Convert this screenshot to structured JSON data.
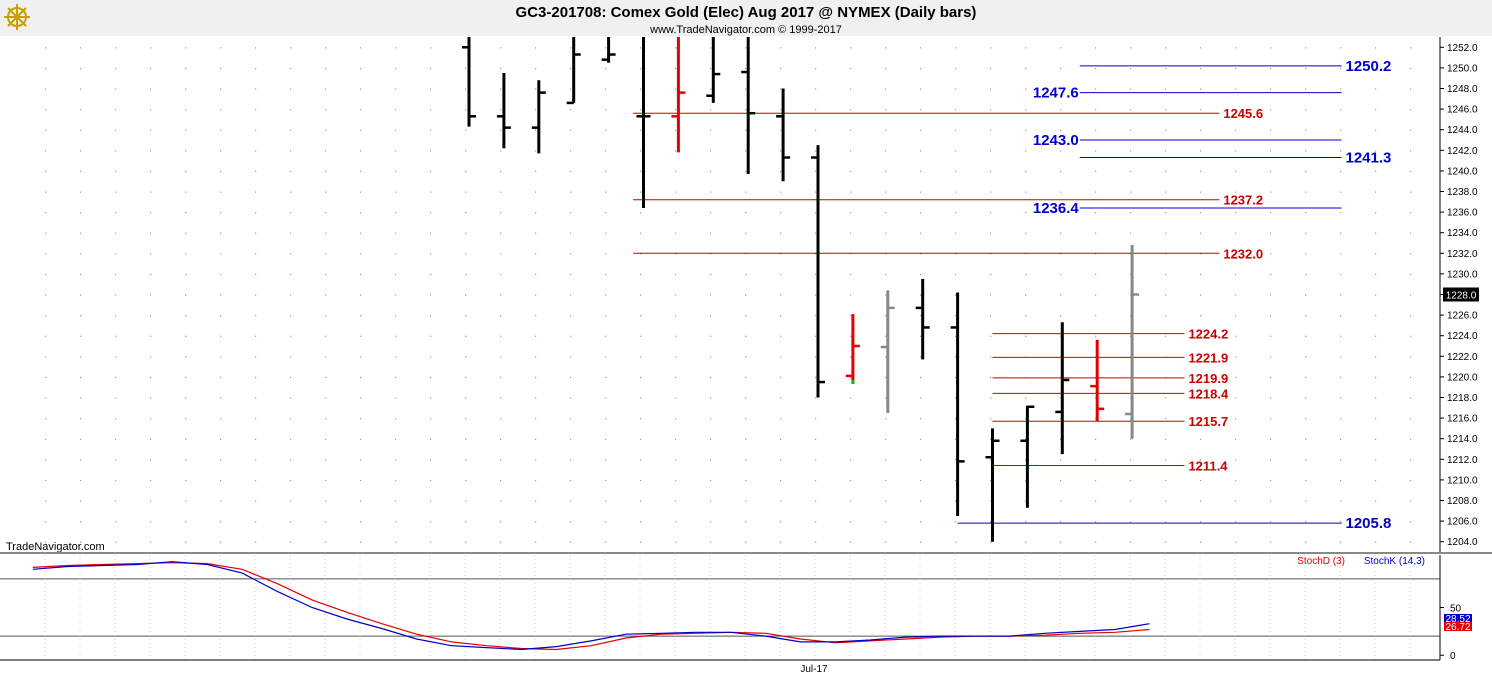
{
  "title": "GC3-201708:  Comex Gold (Elec) Aug 2017 @ NYMEX  (Daily bars)",
  "subtitle": "www.TradeNavigator.com © 1999-2017",
  "watermark": "TradeNavigator.com",
  "logo_icon": "trading-ship-wheel-icon",
  "chart_data": [
    {
      "type": "ohlc",
      "price_axis": {
        "ylim": [
          1203,
          1253
        ],
        "ticks": [
          1204,
          1206,
          1208,
          1210,
          1212,
          1214,
          1216,
          1218,
          1220,
          1222,
          1224,
          1226,
          1228,
          1230,
          1232,
          1234,
          1236,
          1238,
          1240,
          1242,
          1244,
          1246,
          1248,
          1250,
          1252
        ],
        "tick_labels": [
          "1204.0",
          "1206.0",
          "1208.0",
          "1210.0",
          "1212.0",
          "1214.0",
          "1216.0",
          "1218.0",
          "1220.0",
          "1222.0",
          "1224.0",
          "1226.0",
          "1228.0",
          "1230.0",
          "1232.0",
          "1234.0",
          "1236.0",
          "1238.0",
          "1240.0",
          "1242.0",
          "1244.0",
          "1246.0",
          "1248.0",
          "1250.0",
          "1252.0"
        ],
        "position": "right"
      },
      "last_price": {
        "value": 1228.0,
        "label": "1228.0"
      },
      "colors": {
        "up_black": "#000000",
        "red": "#e60000",
        "gray": "#888888",
        "green": "#00c000",
        "support_red": "#cc0000",
        "support_blue": "#0000cc"
      },
      "bars": [
        {
          "o": 1252,
          "h": 1253,
          "l": 1244.3,
          "c": 1245.3,
          "color": "#000000"
        },
        {
          "o": 1245.3,
          "h": 1249.5,
          "l": 1242.2,
          "c": 1244.2,
          "color": "#000000"
        },
        {
          "o": 1244.2,
          "h": 1248.8,
          "l": 1241.7,
          "c": 1247.6,
          "color": "#000000"
        },
        {
          "o": 1246.6,
          "h": 1253,
          "l": 1246.6,
          "c": 1251.3,
          "color": "#000000"
        },
        {
          "o": 1250.8,
          "h": 1253,
          "l": 1250.5,
          "c": 1251.3,
          "color": "#000000"
        },
        {
          "o": 1245.3,
          "h": 1253,
          "l": 1236.4,
          "c": 1245.3,
          "color": "#000000"
        },
        {
          "o": 1245.3,
          "h": 1253,
          "l": 1241.8,
          "c": 1247.6,
          "color": "#e60000"
        },
        {
          "o": 1247.3,
          "h": 1253,
          "l": 1246.6,
          "c": 1249.4,
          "color": "#000000"
        },
        {
          "o": 1249.6,
          "h": 1253,
          "l": 1239.7,
          "c": 1245.6,
          "color": "#000000"
        },
        {
          "o": 1245.3,
          "h": 1248.0,
          "l": 1239.0,
          "c": 1241.3,
          "color": "#000000"
        },
        {
          "o": 1241.3,
          "h": 1242.5,
          "l": 1218.0,
          "c": 1219.5,
          "color": "#000000"
        },
        {
          "o": 1220.1,
          "h": 1226.1,
          "l": 1219.6,
          "c": 1223.0,
          "color": "#e60000",
          "low_marker": "#00c000"
        },
        {
          "o": 1222.9,
          "h": 1228.4,
          "l": 1216.5,
          "c": 1226.7,
          "color": "#888888"
        },
        {
          "o": 1226.7,
          "h": 1229.5,
          "l": 1221.7,
          "c": 1224.8,
          "color": "#000000"
        },
        {
          "o": 1224.8,
          "h": 1228.2,
          "l": 1206.5,
          "c": 1211.8,
          "color": "#000000"
        },
        {
          "o": 1212.2,
          "h": 1215.0,
          "l": 1204.0,
          "c": 1213.8,
          "color": "#000000"
        },
        {
          "o": 1213.8,
          "h": 1217.2,
          "l": 1207.3,
          "c": 1217.1,
          "color": "#000000"
        },
        {
          "o": 1216.6,
          "h": 1225.3,
          "l": 1212.5,
          "c": 1219.7,
          "color": "#000000"
        },
        {
          "o": 1219.1,
          "h": 1223.6,
          "l": 1215.7,
          "c": 1216.9,
          "color": "#e60000"
        },
        {
          "o": 1216.4,
          "h": 1232.8,
          "l": 1214.0,
          "c": 1228.0,
          "color": "#888888"
        }
      ],
      "levels": [
        {
          "value": 1250.2,
          "label": "1250.2",
          "color": "#0000cc",
          "from_bar": 17.5,
          "to_bar": 25.0,
          "label_side": "right"
        },
        {
          "value": 1247.6,
          "label": "1247.6",
          "color": "#0000cc",
          "from_bar": 17.5,
          "to_bar": 25.0,
          "label_side": "left"
        },
        {
          "value": 1245.6,
          "label": "1245.6",
          "color": "#cc0000",
          "from_bar": 4.7,
          "to_bar": 21.5,
          "label_side": "right"
        },
        {
          "value": 1243.0,
          "label": "1243.0",
          "color": "#0000cc",
          "from_bar": 17.5,
          "to_bar": 25.0,
          "label_side": "left"
        },
        {
          "value": 1241.3,
          "label": "1241.3",
          "color": "#0000cc",
          "from_bar": 17.5,
          "to_bar": 25.0,
          "label_side": "right"
        },
        {
          "value": 1237.2,
          "label": "1237.2",
          "color": "#cc0000",
          "from_bar": 4.7,
          "to_bar": 21.5,
          "label_side": "right"
        },
        {
          "value": 1236.4,
          "label": "1236.4",
          "color": "#0000cc",
          "from_bar": 17.5,
          "to_bar": 25.0,
          "label_side": "left"
        },
        {
          "value": 1232.0,
          "label": "1232.0",
          "color": "#cc0000",
          "from_bar": 4.7,
          "to_bar": 21.5,
          "label_side": "right"
        },
        {
          "value": 1224.2,
          "label": "1224.2",
          "color": "#cc0000",
          "from_bar": 15.0,
          "to_bar": 20.5,
          "label_side": "right"
        },
        {
          "value": 1221.9,
          "label": "1221.9",
          "color": "#cc0000",
          "from_bar": 15.0,
          "to_bar": 20.5,
          "label_side": "right"
        },
        {
          "value": 1219.9,
          "label": "1219.9",
          "color": "#cc0000",
          "from_bar": 15.0,
          "to_bar": 20.5,
          "label_side": "right"
        },
        {
          "value": 1218.4,
          "label": "1218.4",
          "color": "#cc0000",
          "from_bar": 15.0,
          "to_bar": 20.5,
          "label_side": "right"
        },
        {
          "value": 1215.7,
          "label": "1215.7",
          "color": "#cc0000",
          "from_bar": 15.0,
          "to_bar": 20.5,
          "label_side": "right"
        },
        {
          "value": 1211.4,
          "label": "1211.4",
          "color": "#cc0000",
          "from_bar": 15.0,
          "to_bar": 20.5,
          "label_side": "right"
        },
        {
          "value": 1205.8,
          "label": "1205.8",
          "color": "#0000cc",
          "from_bar": 14.0,
          "to_bar": 25.0,
          "label_side": "right"
        }
      ]
    },
    {
      "type": "line",
      "ylim": [
        -5,
        105
      ],
      "ticks": [
        0,
        50
      ],
      "tick_labels": [
        "0",
        "50"
      ],
      "reference_lines": [
        80,
        20
      ],
      "x_label": "Jul-17",
      "legend": "top-right",
      "series": [
        {
          "name": "StochD (3)",
          "color": "#e60000",
          "value_label": "26.72",
          "values": [
            [
              -12.5,
              92
            ],
            [
              -11.5,
              94
            ],
            [
              -10.5,
              95
            ],
            [
              -9.5,
              96
            ],
            [
              -8.5,
              97
            ],
            [
              -7.5,
              96
            ],
            [
              -6.5,
              90
            ],
            [
              -5.5,
              75
            ],
            [
              -4.5,
              58
            ],
            [
              -3.5,
              45
            ],
            [
              -2.5,
              33
            ],
            [
              -1.5,
              22
            ],
            [
              -0.5,
              14
            ],
            [
              0.5,
              10
            ],
            [
              1.5,
              7
            ],
            [
              2.5,
              6
            ],
            [
              3.5,
              10
            ],
            [
              4.5,
              18
            ],
            [
              5.5,
              22
            ],
            [
              6.5,
              23
            ],
            [
              7.5,
              24
            ],
            [
              8.5,
              23
            ],
            [
              9.5,
              17
            ],
            [
              10.5,
              13
            ],
            [
              11.5,
              15
            ],
            [
              12.5,
              17
            ],
            [
              13.5,
              19
            ],
            [
              14.5,
              20
            ],
            [
              15.5,
              20
            ],
            [
              16.5,
              21
            ],
            [
              17.5,
              23
            ],
            [
              18.5,
              24
            ],
            [
              19.5,
              27
            ]
          ]
        },
        {
          "name": "StochK (14,3)",
          "color": "#0000cc",
          "value_label": "28.52",
          "values": [
            [
              -12.5,
              90
            ],
            [
              -11.5,
              93
            ],
            [
              -10.5,
              94
            ],
            [
              -9.5,
              95
            ],
            [
              -8.5,
              98
            ],
            [
              -7.5,
              95
            ],
            [
              -6.5,
              86
            ],
            [
              -5.5,
              67
            ],
            [
              -4.5,
              50
            ],
            [
              -3.5,
              38
            ],
            [
              -2.5,
              28
            ],
            [
              -1.5,
              17
            ],
            [
              -0.5,
              10
            ],
            [
              0.5,
              8
            ],
            [
              1.5,
              6
            ],
            [
              2.5,
              9
            ],
            [
              3.5,
              15
            ],
            [
              4.5,
              22
            ],
            [
              5.5,
              23
            ],
            [
              6.5,
              24
            ],
            [
              7.5,
              24
            ],
            [
              8.5,
              20
            ],
            [
              9.5,
              14
            ],
            [
              10.5,
              14
            ],
            [
              11.5,
              16
            ],
            [
              12.5,
              19
            ],
            [
              13.5,
              20
            ],
            [
              14.5,
              20
            ],
            [
              15.5,
              20
            ],
            [
              16.5,
              23
            ],
            [
              17.5,
              25
            ],
            [
              18.5,
              27
            ],
            [
              19.5,
              33
            ]
          ]
        }
      ]
    }
  ]
}
